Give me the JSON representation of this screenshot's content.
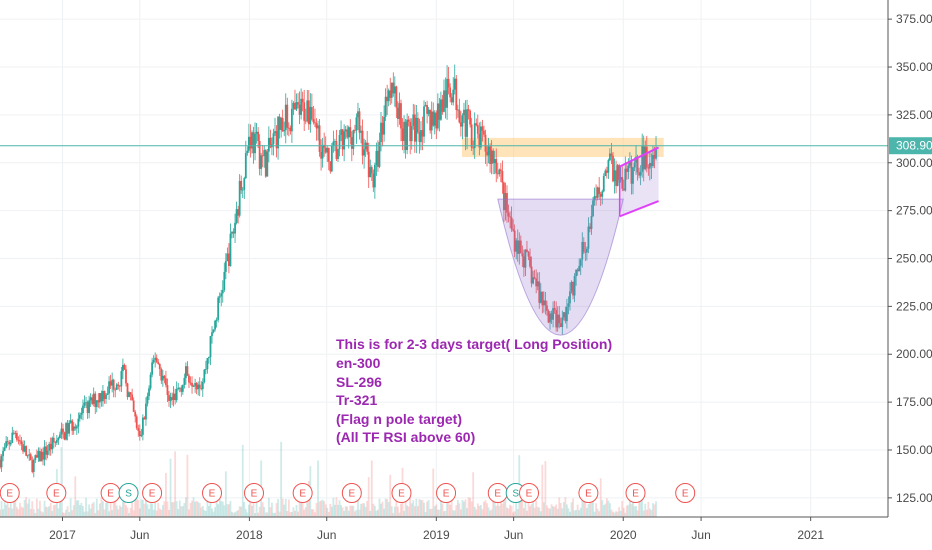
{
  "chart_data": {
    "type": "candlestick",
    "x_ticks": [
      "2017",
      "Jun",
      "2018",
      "Jun",
      "2019",
      "Jun",
      "2020",
      "Jun",
      "2021"
    ],
    "y_ticks": [
      "375.00",
      "350.00",
      "325.00",
      "300.00",
      "275.00",
      "250.00",
      "225.00",
      "200.00",
      "175.00",
      "150.00",
      "125.00"
    ],
    "ylim": [
      115,
      385
    ],
    "last_price": "308.90",
    "horizontal_line": 308.9,
    "price_path": [
      [
        "2016-09-01",
        145
      ],
      [
        "2016-10-01",
        160
      ],
      [
        "2016-11-01",
        142
      ],
      [
        "2017-01-01",
        158
      ],
      [
        "2017-03-01",
        175
      ],
      [
        "2017-05-01",
        190
      ],
      [
        "2017-06-01",
        155
      ],
      [
        "2017-07-01",
        200
      ],
      [
        "2017-08-01",
        175
      ],
      [
        "2017-09-01",
        190
      ],
      [
        "2017-10-01",
        185
      ],
      [
        "2017-11-01",
        225
      ],
      [
        "2017-12-01",
        265
      ],
      [
        "2018-01-01",
        315
      ],
      [
        "2018-02-01",
        300
      ],
      [
        "2018-03-01",
        320
      ],
      [
        "2018-05-01",
        330
      ],
      [
        "2018-06-01",
        300
      ],
      [
        "2018-08-01",
        320
      ],
      [
        "2018-09-01",
        290
      ],
      [
        "2018-10-01",
        345
      ],
      [
        "2018-11-01",
        315
      ],
      [
        "2019-01-01",
        325
      ],
      [
        "2019-02-01",
        340
      ],
      [
        "2019-03-01",
        320
      ],
      [
        "2019-04-01",
        310
      ],
      [
        "2019-05-01",
        300
      ],
      [
        "2019-05-15",
        278
      ],
      [
        "2019-06-01",
        262
      ],
      [
        "2019-07-01",
        245
      ],
      [
        "2019-08-01",
        225
      ],
      [
        "2019-09-01",
        215
      ],
      [
        "2019-10-01",
        240
      ],
      [
        "2019-11-01",
        272
      ],
      [
        "2019-12-01",
        300
      ],
      [
        "2020-01-01",
        290
      ],
      [
        "2020-02-01",
        300
      ],
      [
        "2020-03-05",
        308.9
      ]
    ],
    "events": [
      {
        "date": "2016-09-20",
        "label": "E"
      },
      {
        "date": "2016-12-20",
        "label": "E"
      },
      {
        "date": "2017-04-05",
        "label": "E"
      },
      {
        "date": "2017-05-10",
        "label": "S"
      },
      {
        "date": "2017-06-25",
        "label": "E"
      },
      {
        "date": "2017-10-20",
        "label": "E"
      },
      {
        "date": "2018-01-10",
        "label": "E"
      },
      {
        "date": "2018-04-15",
        "label": "E"
      },
      {
        "date": "2018-07-20",
        "label": "E"
      },
      {
        "date": "2018-10-25",
        "label": "E"
      },
      {
        "date": "2019-01-20",
        "label": "E"
      },
      {
        "date": "2019-05-01",
        "label": "E"
      },
      {
        "date": "2019-06-05",
        "label": "S"
      },
      {
        "date": "2019-07-01",
        "label": "E"
      },
      {
        "date": "2019-10-25",
        "label": "E"
      },
      {
        "date": "2020-01-25",
        "label": "E"
      },
      {
        "date": "2020-05-01",
        "label": "E"
      }
    ],
    "resistance_zone": {
      "from": "2019-02-20",
      "to": "2020-03-20",
      "low": 303,
      "high": 313
    },
    "cup": {
      "left": "2019-05-01",
      "right": "2020-01-01",
      "top": 281,
      "bottom": 210
    },
    "flag_channel": {
      "start": "2019-12-25",
      "end": "2020-03-10",
      "upper": [
        298,
        308
      ],
      "lower": [
        272,
        280
      ]
    },
    "annotation": [
      "This is for 2-3 days target( Long Position)",
      "en-300",
      "SL-296",
      "Tr-321",
      "(Flag n pole target)",
      "(All TF RSI above 60)"
    ],
    "colors": {
      "up": "#26a69a",
      "down": "#ef5350",
      "hline": "#4db6ac",
      "zone": "#ffcc80",
      "cup": "#9575cd",
      "flag": "#e040fb",
      "annotation": "#9c27b0"
    }
  }
}
